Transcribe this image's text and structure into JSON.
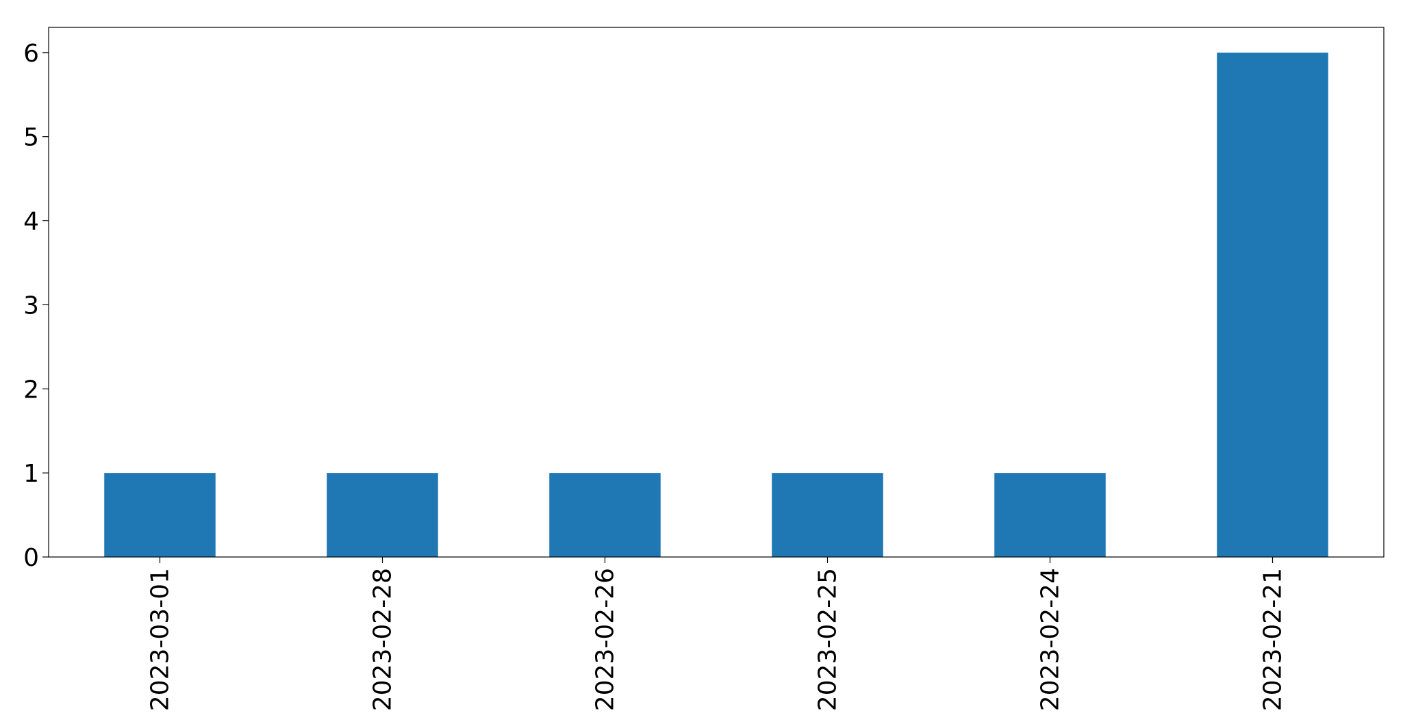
{
  "chart_data": {
    "type": "bar",
    "categories": [
      "2023-03-01",
      "2023-02-28",
      "2023-02-26",
      "2023-02-25",
      "2023-02-24",
      "2023-02-21"
    ],
    "values": [
      1,
      1,
      1,
      1,
      1,
      6
    ],
    "title": "",
    "xlabel": "",
    "ylabel": "",
    "ylim": [
      0,
      6.3
    ],
    "yticks": [
      0,
      1,
      2,
      3,
      4,
      5,
      6
    ],
    "xtick_rotation": "vertical",
    "grid": false,
    "legend": "none",
    "bar_color": "#1f77b4"
  }
}
